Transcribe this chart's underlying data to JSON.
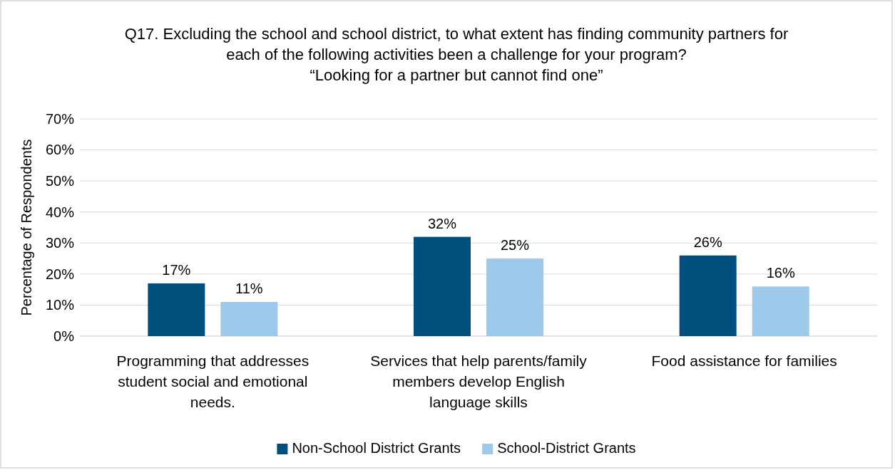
{
  "chart_data": {
    "type": "bar",
    "title": "Q17. Excluding the school and school district, to what extent has finding community partners for each of the following activities been a challenge for your program?",
    "subtitle": "“Looking for a partner but cannot find one”",
    "ylabel": "Percentage of Respondents",
    "categories": [
      "Programming that addresses student social and emotional needs.",
      "Services that help parents/family members develop English language skills",
      "Food assistance for families"
    ],
    "series": [
      {
        "name": "Non-School District Grants",
        "color": "#00507f",
        "values": [
          17,
          32,
          26
        ],
        "value_labels": [
          "17%",
          "32%",
          "26%"
        ]
      },
      {
        "name": "School-District Grants",
        "color": "#9dc9ea",
        "values": [
          11,
          25,
          16
        ],
        "value_labels": [
          "11%",
          "25%",
          "16%"
        ]
      }
    ],
    "ylim": [
      0,
      70
    ],
    "yticks": [
      {
        "value": 0,
        "label": "0%"
      },
      {
        "value": 10,
        "label": "10%"
      },
      {
        "value": 20,
        "label": "20%"
      },
      {
        "value": 30,
        "label": "30%"
      },
      {
        "value": 40,
        "label": "40%"
      },
      {
        "value": 50,
        "label": "50%"
      },
      {
        "value": 60,
        "label": "60%"
      },
      {
        "value": 70,
        "label": "70%"
      }
    ],
    "grid": "y",
    "legend": "bottom"
  }
}
